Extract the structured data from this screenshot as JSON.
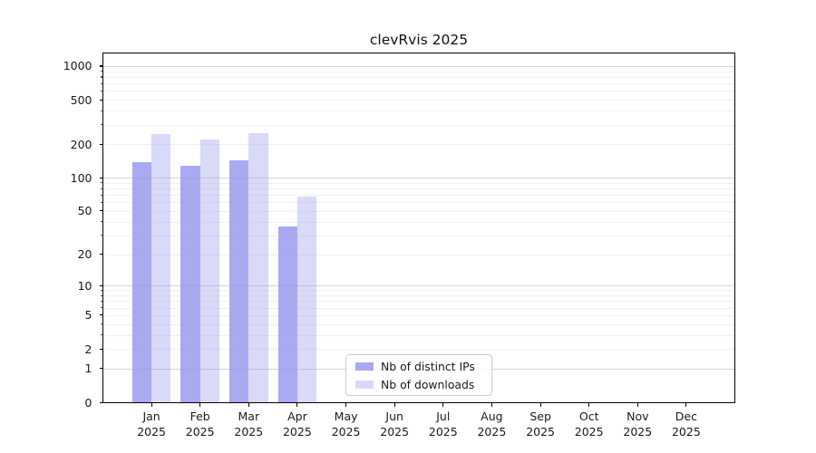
{
  "title": "clevRvis 2025",
  "chart_data": {
    "type": "bar",
    "title": "clevRvis 2025",
    "scale": "log1p (symlog-style: linear 0-1, log above)",
    "categories": [
      "Jan",
      "Feb",
      "Mar",
      "Apr",
      "May",
      "Jun",
      "Jul",
      "Aug",
      "Sep",
      "Oct",
      "Nov",
      "Dec"
    ],
    "year_label": "2025",
    "series": [
      {
        "name": "Nb of distinct IPs",
        "color": "#a9a9f1",
        "values": [
          139,
          127,
          142,
          36,
          0,
          0,
          0,
          0,
          0,
          0,
          0,
          0
        ]
      },
      {
        "name": "Nb of downloads",
        "color": "#d9d9f8",
        "values": [
          245,
          220,
          251,
          67,
          0,
          0,
          0,
          0,
          0,
          0,
          0,
          0
        ]
      }
    ],
    "ytick_values": [
      0,
      1,
      2,
      5,
      10,
      20,
      50,
      100,
      200,
      500,
      1000
    ],
    "ytick_labels": [
      "0",
      "1",
      "2",
      "5",
      "10",
      "20",
      "50",
      "100",
      "200",
      "500",
      "1000"
    ],
    "y_major_gridlines": [
      1,
      10,
      100,
      1000
    ],
    "y_minor_gridlines": [
      2,
      3,
      4,
      5,
      6,
      7,
      8,
      9,
      20,
      30,
      40,
      50,
      60,
      70,
      80,
      90,
      200,
      300,
      400,
      500,
      600,
      700,
      800,
      900
    ],
    "ylim": [
      0,
      1296
    ],
    "xlabel": "",
    "ylabel": "",
    "grid": "horizontal only, drawn over bars",
    "legend_position": "inside plot, lower center-left",
    "axis_color": "#000000",
    "background_color": "#ffffff"
  }
}
